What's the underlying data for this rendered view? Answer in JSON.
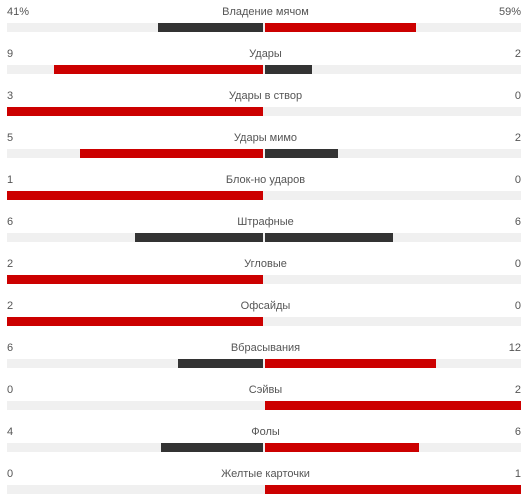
{
  "colors": {
    "leader": "#cc0000",
    "trailer": "#333333",
    "track": "#f0f0f0",
    "text": "#555555"
  },
  "stats": [
    {
      "label": "Владение мячом",
      "home": "41%",
      "away": "59%",
      "home_value": 41,
      "away_value": 59,
      "scale": 100
    },
    {
      "label": "Удары",
      "home": "9",
      "away": "2",
      "home_value": 9,
      "away_value": 2
    },
    {
      "label": "Удары в створ",
      "home": "3",
      "away": "0",
      "home_value": 3,
      "away_value": 0
    },
    {
      "label": "Удары мимо",
      "home": "5",
      "away": "2",
      "home_value": 5,
      "away_value": 2
    },
    {
      "label": "Блок-но ударов",
      "home": "1",
      "away": "0",
      "home_value": 1,
      "away_value": 0
    },
    {
      "label": "Штрафные",
      "home": "6",
      "away": "6",
      "home_value": 6,
      "away_value": 6
    },
    {
      "label": "Угловые",
      "home": "2",
      "away": "0",
      "home_value": 2,
      "away_value": 0
    },
    {
      "label": "Офсайды",
      "home": "2",
      "away": "0",
      "home_value": 2,
      "away_value": 0
    },
    {
      "label": "Вбрасывания",
      "home": "6",
      "away": "12",
      "home_value": 6,
      "away_value": 12
    },
    {
      "label": "Сэйвы",
      "home": "0",
      "away": "2",
      "home_value": 0,
      "away_value": 2
    },
    {
      "label": "Фолы",
      "home": "4",
      "away": "6",
      "home_value": 4,
      "away_value": 6
    },
    {
      "label": "Желтые карточки",
      "home": "0",
      "away": "1",
      "home_value": 0,
      "away_value": 1
    }
  ]
}
